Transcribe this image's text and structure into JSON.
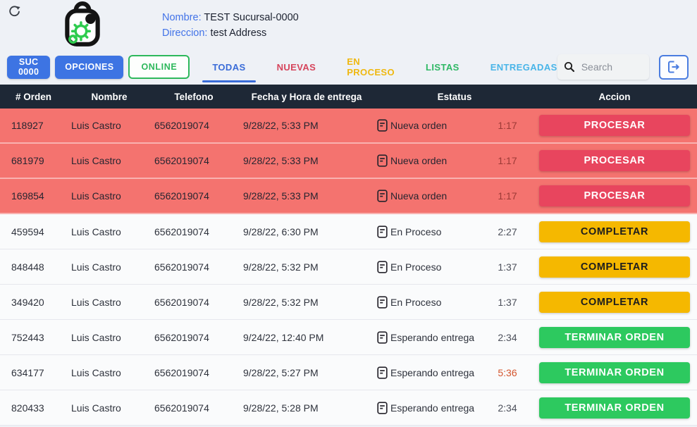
{
  "header": {
    "name_label": "Nombre:",
    "name_value": "TEST Sucursal-0000",
    "address_label": "Direccion:",
    "address_value": "test Address"
  },
  "toolbar": {
    "suc_label": "SUC 0000",
    "opciones_label": "OPCIONES",
    "online_label": "ONLINE",
    "tabs": [
      {
        "label": "TODAS",
        "color": "#3a6cd8",
        "active": true
      },
      {
        "label": "NUEVAS",
        "color": "#d6455c",
        "active": false
      },
      {
        "label": "EN PROCESO",
        "color": "#efb810",
        "active": false
      },
      {
        "label": "LISTAS",
        "color": "#2eb864",
        "active": false
      },
      {
        "label": "ENTREGADAS",
        "color": "#49b5e8",
        "active": false
      }
    ],
    "search_placeholder": "Search"
  },
  "icons": {
    "refresh": "clockwise-arrow",
    "search": "magnifier",
    "logout": "exit-arrow",
    "status_doc": "order-note",
    "logo": "shopping-bag-with-gear"
  },
  "colors": {
    "accent_blue": "#3d74e3",
    "link_blue": "#4273e8",
    "table_header_bg": "#1e2836",
    "row_nueva_bg": "#f4736f",
    "btn_procesar": "#e8455e",
    "btn_completar": "#f5b800",
    "btn_terminar": "#2dc95f",
    "time_alert": "#d4552d",
    "online_green": "#2eb85c"
  },
  "table": {
    "columns": [
      "# Orden",
      "Nombre",
      "Telefono",
      "Fecha y Hora de entrega",
      "Estatus",
      "Accion"
    ],
    "rows": [
      {
        "orden": "118927",
        "nombre": "Luis Castro",
        "telefono": "6562019074",
        "fecha": "9/28/22, 5:33 PM",
        "estatus": "Nueva orden",
        "tiempo": "1:17",
        "tiempo_alert": false,
        "accion": "PROCESAR",
        "estado": "nueva"
      },
      {
        "orden": "681979",
        "nombre": "Luis Castro",
        "telefono": "6562019074",
        "fecha": "9/28/22, 5:33 PM",
        "estatus": "Nueva orden",
        "tiempo": "1:17",
        "tiempo_alert": false,
        "accion": "PROCESAR",
        "estado": "nueva"
      },
      {
        "orden": "169854",
        "nombre": "Luis Castro",
        "telefono": "6562019074",
        "fecha": "9/28/22, 5:33 PM",
        "estatus": "Nueva orden",
        "tiempo": "1:17",
        "tiempo_alert": false,
        "accion": "PROCESAR",
        "estado": "nueva"
      },
      {
        "orden": "459594",
        "nombre": "Luis Castro",
        "telefono": "6562019074",
        "fecha": "9/28/22, 6:30 PM",
        "estatus": "En Proceso",
        "tiempo": "2:27",
        "tiempo_alert": false,
        "accion": "COMPLETAR",
        "estado": "proceso"
      },
      {
        "orden": "848448",
        "nombre": "Luis Castro",
        "telefono": "6562019074",
        "fecha": "9/28/22, 5:32 PM",
        "estatus": "En Proceso",
        "tiempo": "1:37",
        "tiempo_alert": false,
        "accion": "COMPLETAR",
        "estado": "proceso"
      },
      {
        "orden": "349420",
        "nombre": "Luis Castro",
        "telefono": "6562019074",
        "fecha": "9/28/22, 5:32 PM",
        "estatus": "En Proceso",
        "tiempo": "1:37",
        "tiempo_alert": false,
        "accion": "COMPLETAR",
        "estado": "proceso"
      },
      {
        "orden": "752443",
        "nombre": "Luis Castro",
        "telefono": "6562019074",
        "fecha": "9/24/22, 12:40 PM",
        "estatus": "Esperando entrega",
        "tiempo": "2:34",
        "tiempo_alert": false,
        "accion": "TERMINAR ORDEN",
        "estado": "lista"
      },
      {
        "orden": "634177",
        "nombre": "Luis Castro",
        "telefono": "6562019074",
        "fecha": "9/28/22, 5:27 PM",
        "estatus": "Esperando entrega",
        "tiempo": "5:36",
        "tiempo_alert": true,
        "accion": "TERMINAR ORDEN",
        "estado": "lista"
      },
      {
        "orden": "820433",
        "nombre": "Luis Castro",
        "telefono": "6562019074",
        "fecha": "9/28/22, 5:28 PM",
        "estatus": "Esperando entrega",
        "tiempo": "2:34",
        "tiempo_alert": false,
        "accion": "TERMINAR ORDEN",
        "estado": "lista"
      }
    ]
  }
}
